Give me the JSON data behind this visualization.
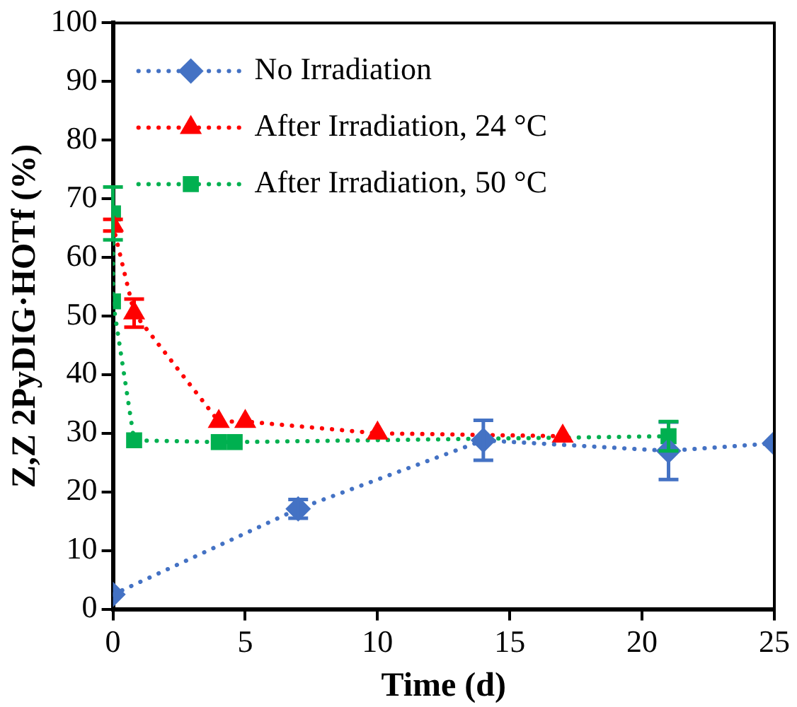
{
  "chart_data": {
    "type": "line",
    "xlabel": "Time (d)",
    "ylabel": "Z,Z 2PyDIG·HOTf (%)",
    "xlim": [
      0,
      25
    ],
    "xticks": [
      0,
      5,
      10,
      15,
      20,
      25
    ],
    "ylim": [
      0,
      100
    ],
    "yticks": [
      0,
      10,
      20,
      30,
      40,
      50,
      60,
      70,
      80,
      90,
      100
    ],
    "grid": false,
    "legend": "top left",
    "line_style": "dotted",
    "series": [
      {
        "name": "No Irradiation",
        "color": "#4472c4",
        "marker": "diamond",
        "x": [
          0,
          7,
          14,
          21,
          25
        ],
        "values": [
          2.5,
          17.1,
          28.8,
          27,
          28.3
        ],
        "errors": [
          null,
          1.6,
          3.4,
          4.9,
          null
        ]
      },
      {
        "name": "After Irradiation, 24 °C",
        "color": "#ff0000",
        "marker": "triangle",
        "x": [
          0,
          0.8,
          4,
          5,
          10,
          17
        ],
        "values": [
          65.5,
          50.5,
          32,
          32,
          30,
          29.5
        ],
        "errors": [
          1,
          2.4,
          null,
          null,
          null,
          null
        ]
      },
      {
        "name": "After Irradiation, 50 °C",
        "color": "#00b050",
        "marker": "square",
        "x": [
          0,
          0,
          0.8,
          4,
          4.6,
          21
        ],
        "values": [
          67.5,
          52.5,
          28.8,
          28.5,
          28.5,
          29.5
        ],
        "errors": [
          4.5,
          null,
          null,
          null,
          null,
          2.5
        ]
      }
    ]
  }
}
